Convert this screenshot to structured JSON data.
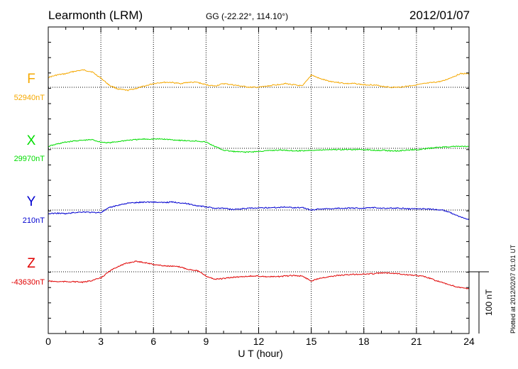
{
  "header": {
    "station": "Learmonth (LRM)",
    "coords": "GG (-22.22°, 114.10°)",
    "date": "2012/01/07",
    "plotted": "Plotted at 2012/02/07 01:01 UT"
  },
  "colors": {
    "F": "#f5a800",
    "X": "#00dd00",
    "Y": "#0000d0",
    "Z": "#e00000"
  },
  "chart_data": {
    "type": "line",
    "xlabel": "U T (hour)",
    "xlim": [
      0,
      24
    ],
    "x_ticks": [
      "0",
      "3",
      "6",
      "9",
      "12",
      "15",
      "18",
      "21",
      "24"
    ],
    "scale_bar_label": "100 nT",
    "scale_bar_nT": 100,
    "x": [
      0,
      0.5,
      1,
      1.5,
      2,
      2.5,
      3,
      3.5,
      4,
      4.5,
      5,
      5.5,
      6,
      6.5,
      7,
      7.5,
      8,
      8.5,
      9,
      9.5,
      10,
      10.5,
      11,
      11.5,
      12,
      12.5,
      13,
      13.5,
      14,
      14.5,
      15,
      15.5,
      16,
      16.5,
      17,
      17.5,
      18,
      18.5,
      19,
      19.5,
      20,
      20.5,
      21,
      21.5,
      22,
      22.5,
      23,
      23.5,
      24
    ],
    "series": [
      {
        "name": "F",
        "baseline": "52940nT",
        "baseline_value": 52940,
        "values": [
          52956,
          52960,
          52962,
          52966,
          52968,
          52965,
          52955,
          52943,
          52937,
          52935,
          52938,
          52942,
          52946,
          52948,
          52948,
          52946,
          52948,
          52948,
          52944,
          52942,
          52946,
          52944,
          52942,
          52940,
          52940,
          52942,
          52944,
          52946,
          52944,
          52942,
          52960,
          52954,
          52950,
          52948,
          52946,
          52946,
          52944,
          52944,
          52942,
          52940,
          52940,
          52942,
          52944,
          52946,
          52948,
          52950,
          52956,
          52962,
          52962
        ]
      },
      {
        "name": "X",
        "baseline": "29970nT",
        "baseline_value": 29970,
        "values": [
          29973,
          29977,
          29980,
          29982,
          29983,
          29984,
          29980,
          29979,
          29981,
          29983,
          29984,
          29985,
          29985,
          29985,
          29984,
          29983,
          29982,
          29982,
          29980,
          29973,
          29967,
          29965,
          29964,
          29964,
          29965,
          29966,
          29967,
          29967,
          29966,
          29966,
          29967,
          29967,
          29968,
          29968,
          29968,
          29968,
          29968,
          29967,
          29967,
          29966,
          29966,
          29967,
          29968,
          29969,
          29971,
          29972,
          29973,
          29973,
          29973
        ]
      },
      {
        "name": "Y",
        "baseline": "210nT",
        "baseline_value": 210,
        "values": [
          204,
          205,
          204,
          206,
          207,
          206,
          206,
          214,
          218,
          221,
          222,
          223,
          223,
          222,
          223,
          222,
          220,
          217,
          215,
          213,
          213,
          211,
          212,
          213,
          213,
          214,
          214,
          215,
          214,
          214,
          210,
          212,
          212,
          213,
          213,
          213,
          213,
          214,
          213,
          213,
          213,
          212,
          212,
          212,
          211,
          210,
          205,
          199,
          194
        ]
      },
      {
        "name": "Z",
        "baseline": "-43630nT",
        "baseline_value": -43630,
        "values": [
          -43645,
          -43646,
          -43646,
          -43646,
          -43647,
          -43644,
          -43640,
          -43629,
          -43621,
          -43616,
          -43613,
          -43615,
          -43618,
          -43620,
          -43621,
          -43622,
          -43626,
          -43628,
          -43637,
          -43642,
          -43641,
          -43639,
          -43638,
          -43637,
          -43637,
          -43638,
          -43638,
          -43637,
          -43636,
          -43637,
          -43645,
          -43640,
          -43638,
          -43636,
          -43635,
          -43634,
          -43634,
          -43633,
          -43632,
          -43632,
          -43633,
          -43635,
          -43636,
          -43638,
          -43643,
          -43648,
          -43652,
          -43656,
          -43657
        ]
      }
    ]
  }
}
